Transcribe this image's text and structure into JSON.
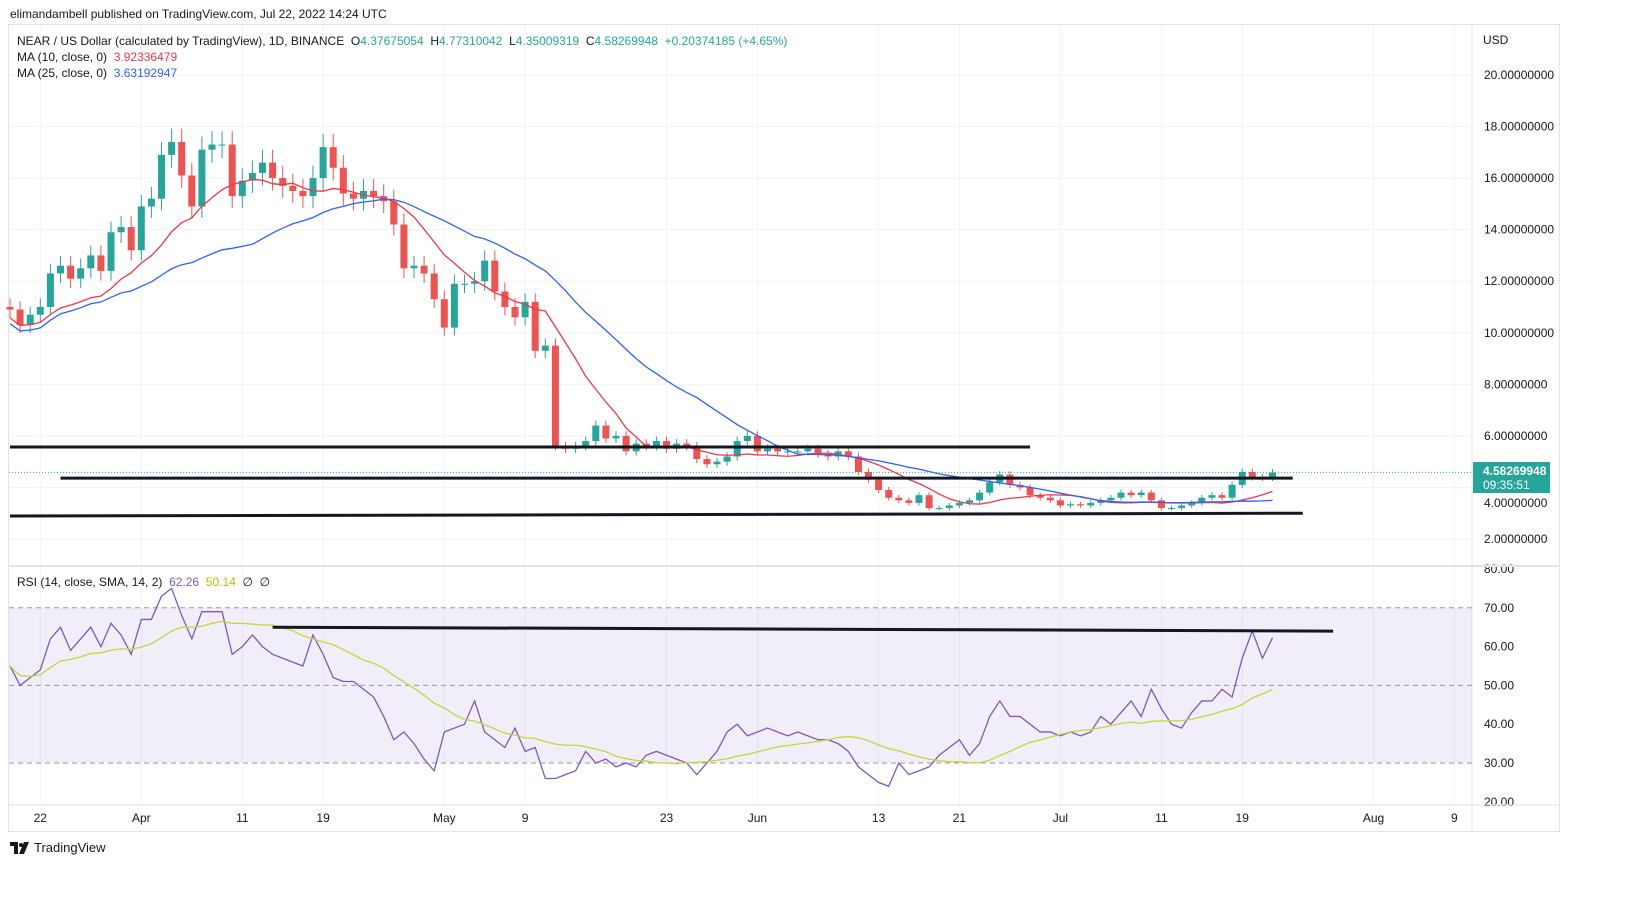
{
  "header": {
    "published": "elimandambell published on TradingView.com, Jul 22, 2022 14:24 UTC"
  },
  "legend": {
    "symbol": "NEAR / US Dollar (calculated by TradingView), 1D, BINANCE",
    "o_label": "O",
    "o": "4.37675054",
    "h_label": "H",
    "h": "4.77310042",
    "l_label": "L",
    "l": "4.35009319",
    "c_label": "C",
    "c": "4.58269948",
    "change": "+0.20374185 (+4.65%)",
    "ma10_label": "MA (10, close, 0)",
    "ma10": "3.92336479",
    "ma25_label": "MA (25, close, 0)",
    "ma25": "3.63192947",
    "rsi_label": "RSI (14, close, SMA, 14, 2)",
    "rsi": "62.26",
    "rsi_sma": "50.14",
    "rsi_x1": "∅",
    "rsi_x2": "∅"
  },
  "price_tag": {
    "price": "4.58269948",
    "countdown": "09:35:51"
  },
  "currency": "USD",
  "footer": {
    "brand": "TradingView"
  },
  "colors": {
    "up": "#26a69a",
    "down": "#ef5350",
    "ma10": "#f23645",
    "ma25": "#2962ff",
    "rsi": "#7e57c2",
    "rsi_sma": "#c6d63a"
  },
  "chart_data": [
    {
      "type": "candlestick",
      "title": "NEAR / US Dollar",
      "start_date": "2022-03-19",
      "end_date": "2022-07-22",
      "ylim": [
        1,
        21
      ],
      "yticks": [
        "2.00000000",
        "4.00000000",
        "6.00000000",
        "8.00000000",
        "10.00000000",
        "12.00000000",
        "14.00000000",
        "16.00000000",
        "18.00000000",
        "20.00000000"
      ],
      "xticks": [
        {
          "day": 3,
          "label": "22"
        },
        {
          "day": 13,
          "label": "Apr"
        },
        {
          "day": 23,
          "label": "11"
        },
        {
          "day": 31,
          "label": "19"
        },
        {
          "day": 43,
          "label": "May"
        },
        {
          "day": 51,
          "label": "9"
        },
        {
          "day": 65,
          "label": "23"
        },
        {
          "day": 74,
          "label": "Jun"
        },
        {
          "day": 86,
          "label": "13"
        },
        {
          "day": 94,
          "label": "21"
        },
        {
          "day": 104,
          "label": "Jul"
        },
        {
          "day": 114,
          "label": "11"
        },
        {
          "day": 122,
          "label": "19"
        },
        {
          "day": 135,
          "label": "Aug"
        },
        {
          "day": 143,
          "label": "9"
        }
      ],
      "close": [
        10.9,
        10.3,
        10.7,
        11.0,
        12.3,
        12.6,
        12.1,
        12.5,
        13.0,
        12.4,
        13.9,
        14.1,
        13.2,
        14.9,
        15.2,
        16.9,
        17.4,
        16.1,
        14.9,
        17.1,
        17.3,
        17.3,
        15.3,
        15.9,
        16.2,
        16.6,
        16.0,
        15.7,
        15.5,
        15.3,
        16.0,
        17.2,
        16.4,
        15.4,
        15.2,
        15.5,
        15.3,
        15.1,
        14.2,
        12.5,
        12.6,
        12.3,
        11.3,
        10.2,
        11.9,
        11.9,
        12.0,
        12.8,
        11.6,
        11.0,
        10.6,
        11.2,
        9.3,
        9.5,
        5.6,
        5.5,
        5.6,
        5.8,
        6.4,
        5.9,
        6.0,
        5.4,
        5.7,
        5.6,
        5.8,
        5.5,
        5.7,
        5.6,
        5.1,
        4.9,
        5.0,
        5.2,
        5.8,
        6.0,
        5.4,
        5.5,
        5.4,
        5.4,
        5.4,
        5.5,
        5.3,
        5.2,
        5.4,
        5.2,
        4.6,
        4.3,
        3.9,
        3.6,
        3.5,
        3.4,
        3.7,
        3.2,
        3.2,
        3.3,
        3.4,
        3.5,
        3.8,
        4.2,
        4.5,
        4.1,
        4.0,
        3.7,
        3.6,
        3.5,
        3.3,
        3.35,
        3.3,
        3.4,
        3.5,
        3.6,
        3.8,
        3.7,
        3.8,
        3.5,
        3.2,
        3.2,
        3.3,
        3.4,
        3.6,
        3.7,
        3.6,
        4.1,
        4.6,
        4.4,
        4.38,
        4.58
      ],
      "series": [
        {
          "name": "MA (10, close, 0)",
          "period": 10
        },
        {
          "name": "MA (25, close, 0)",
          "period": 25
        }
      ],
      "drawings": [
        {
          "type": "hline",
          "price": 5.57,
          "from_day": 0,
          "to_day": 101
        },
        {
          "type": "hline",
          "price": 4.36,
          "from_day": 5,
          "to_day": 127
        },
        {
          "type": "trendline",
          "price_from": 2.89,
          "price_to": 3.0,
          "from_day": 0,
          "to_day": 128
        }
      ]
    },
    {
      "type": "line",
      "title": "RSI (14, close, SMA, 14, 2)",
      "ylim": [
        20,
        80
      ],
      "yticks": [
        "20.00",
        "30.00",
        "40.00",
        "50.00",
        "60.00",
        "70.00",
        "80.00"
      ],
      "band": [
        30,
        70
      ],
      "rsi": [
        55,
        50,
        52,
        54,
        62,
        65,
        59,
        62,
        65,
        60,
        66,
        63,
        58,
        67,
        67,
        73,
        75,
        68,
        62,
        69,
        69,
        69,
        58,
        60,
        63,
        60,
        58,
        57,
        56,
        55,
        63,
        58,
        52,
        51,
        51,
        49,
        47,
        42,
        36,
        38,
        35,
        31,
        28,
        38,
        39,
        40,
        46,
        38,
        36,
        34,
        39,
        33,
        34,
        26,
        26,
        27,
        28,
        33,
        30,
        31,
        29,
        30,
        29,
        32,
        33,
        32,
        31,
        30,
        27,
        30,
        33,
        38,
        40,
        37,
        38,
        39,
        38,
        37,
        38,
        37,
        36,
        36,
        35,
        33,
        29,
        27,
        25,
        24,
        30,
        27,
        28,
        29,
        32,
        34,
        36,
        32,
        35,
        42,
        46,
        42,
        42,
        40,
        38,
        38,
        37,
        38,
        37,
        38,
        42,
        40,
        43,
        46,
        42,
        49,
        44,
        40,
        39,
        43,
        46,
        46,
        49,
        47,
        57,
        64,
        57,
        62.26
      ],
      "drawings": [
        {
          "type": "trendline",
          "value_from": 65,
          "value_to": 64,
          "from_day": 26,
          "to_day": 131
        }
      ]
    }
  ]
}
